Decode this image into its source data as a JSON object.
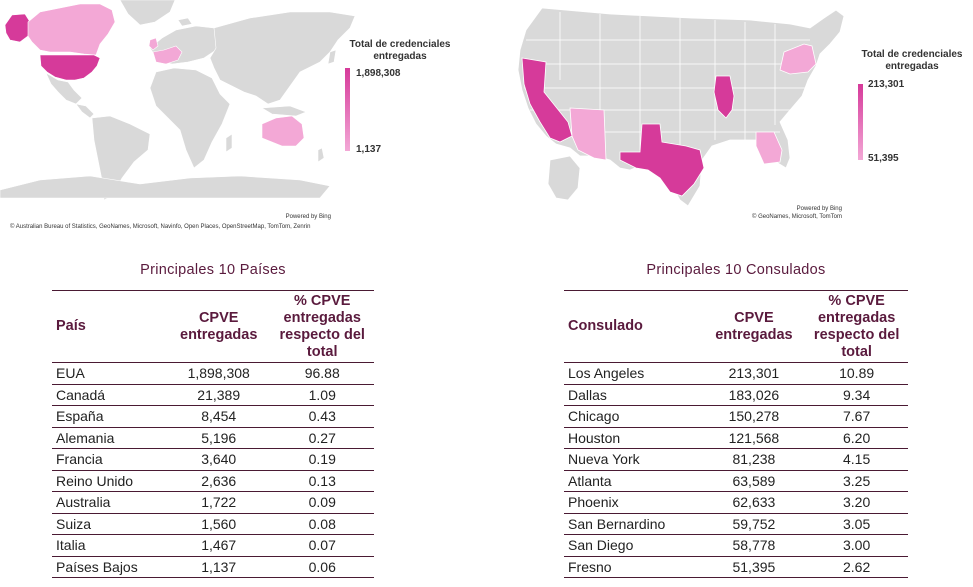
{
  "world_map": {
    "legend_title_line1": "Total de credenciales",
    "legend_title_line2": "entregadas",
    "legend_max": "1,898,308",
    "legend_min": "1,137",
    "powered_by": "Powered by Bing",
    "attribution": "© Australian Bureau of Statistics, GeoNames, Microsoft, Navinfo, Open Places, OpenStreetMap, TomTom, Zenrin",
    "colors": {
      "high": "#d63a9a",
      "low": "#f3a8d6",
      "none": "#d9d9d9"
    }
  },
  "usa_map": {
    "legend_title_line1": "Total de credenciales",
    "legend_title_line2": "entregadas",
    "legend_max": "213,301",
    "legend_min": "51,395",
    "powered_by": "Powered by Bing",
    "attribution": "© GeoNames, Microsoft, TomTom",
    "colors": {
      "high": "#d63a9a",
      "low": "#f3a8d6",
      "none": "#d9d9d9"
    }
  },
  "chart_data": [
    {
      "type": "table",
      "title": "Principales 10 Países",
      "columns": [
        "País",
        "CPVE entregadas",
        "% CPVE entregadas respecto del total"
      ],
      "rows": [
        [
          "EUA",
          "1,898,308",
          "96.88"
        ],
        [
          "Canadá",
          "21,389",
          "1.09"
        ],
        [
          "España",
          "8,454",
          "0.43"
        ],
        [
          "Alemania",
          "5,196",
          "0.27"
        ],
        [
          "Francia",
          "3,640",
          "0.19"
        ],
        [
          "Reino Unido",
          "2,636",
          "0.13"
        ],
        [
          "Australia",
          "1,722",
          "0.09"
        ],
        [
          "Suiza",
          "1,560",
          "0.08"
        ],
        [
          "Italia",
          "1,467",
          "0.07"
        ],
        [
          "Países Bajos",
          "1,137",
          "0.06"
        ]
      ]
    },
    {
      "type": "table",
      "title": "Principales 10 Consulados",
      "columns": [
        "Consulado",
        "CPVE entregadas",
        "% CPVE entregadas respecto del total"
      ],
      "rows": [
        [
          "Los Angeles",
          "213,301",
          "10.89"
        ],
        [
          "Dallas",
          "183,026",
          "9.34"
        ],
        [
          "Chicago",
          "150,278",
          "7.67"
        ],
        [
          "Houston",
          "121,568",
          "6.20"
        ],
        [
          "Nueva York",
          "81,238",
          "4.15"
        ],
        [
          "Atlanta",
          "63,589",
          "3.25"
        ],
        [
          "Phoenix",
          "62,633",
          "3.20"
        ],
        [
          "San Bernardino",
          "59,752",
          "3.05"
        ],
        [
          "San Diego",
          "58,778",
          "3.00"
        ],
        [
          "Fresno",
          "51,395",
          "2.62"
        ]
      ]
    }
  ]
}
